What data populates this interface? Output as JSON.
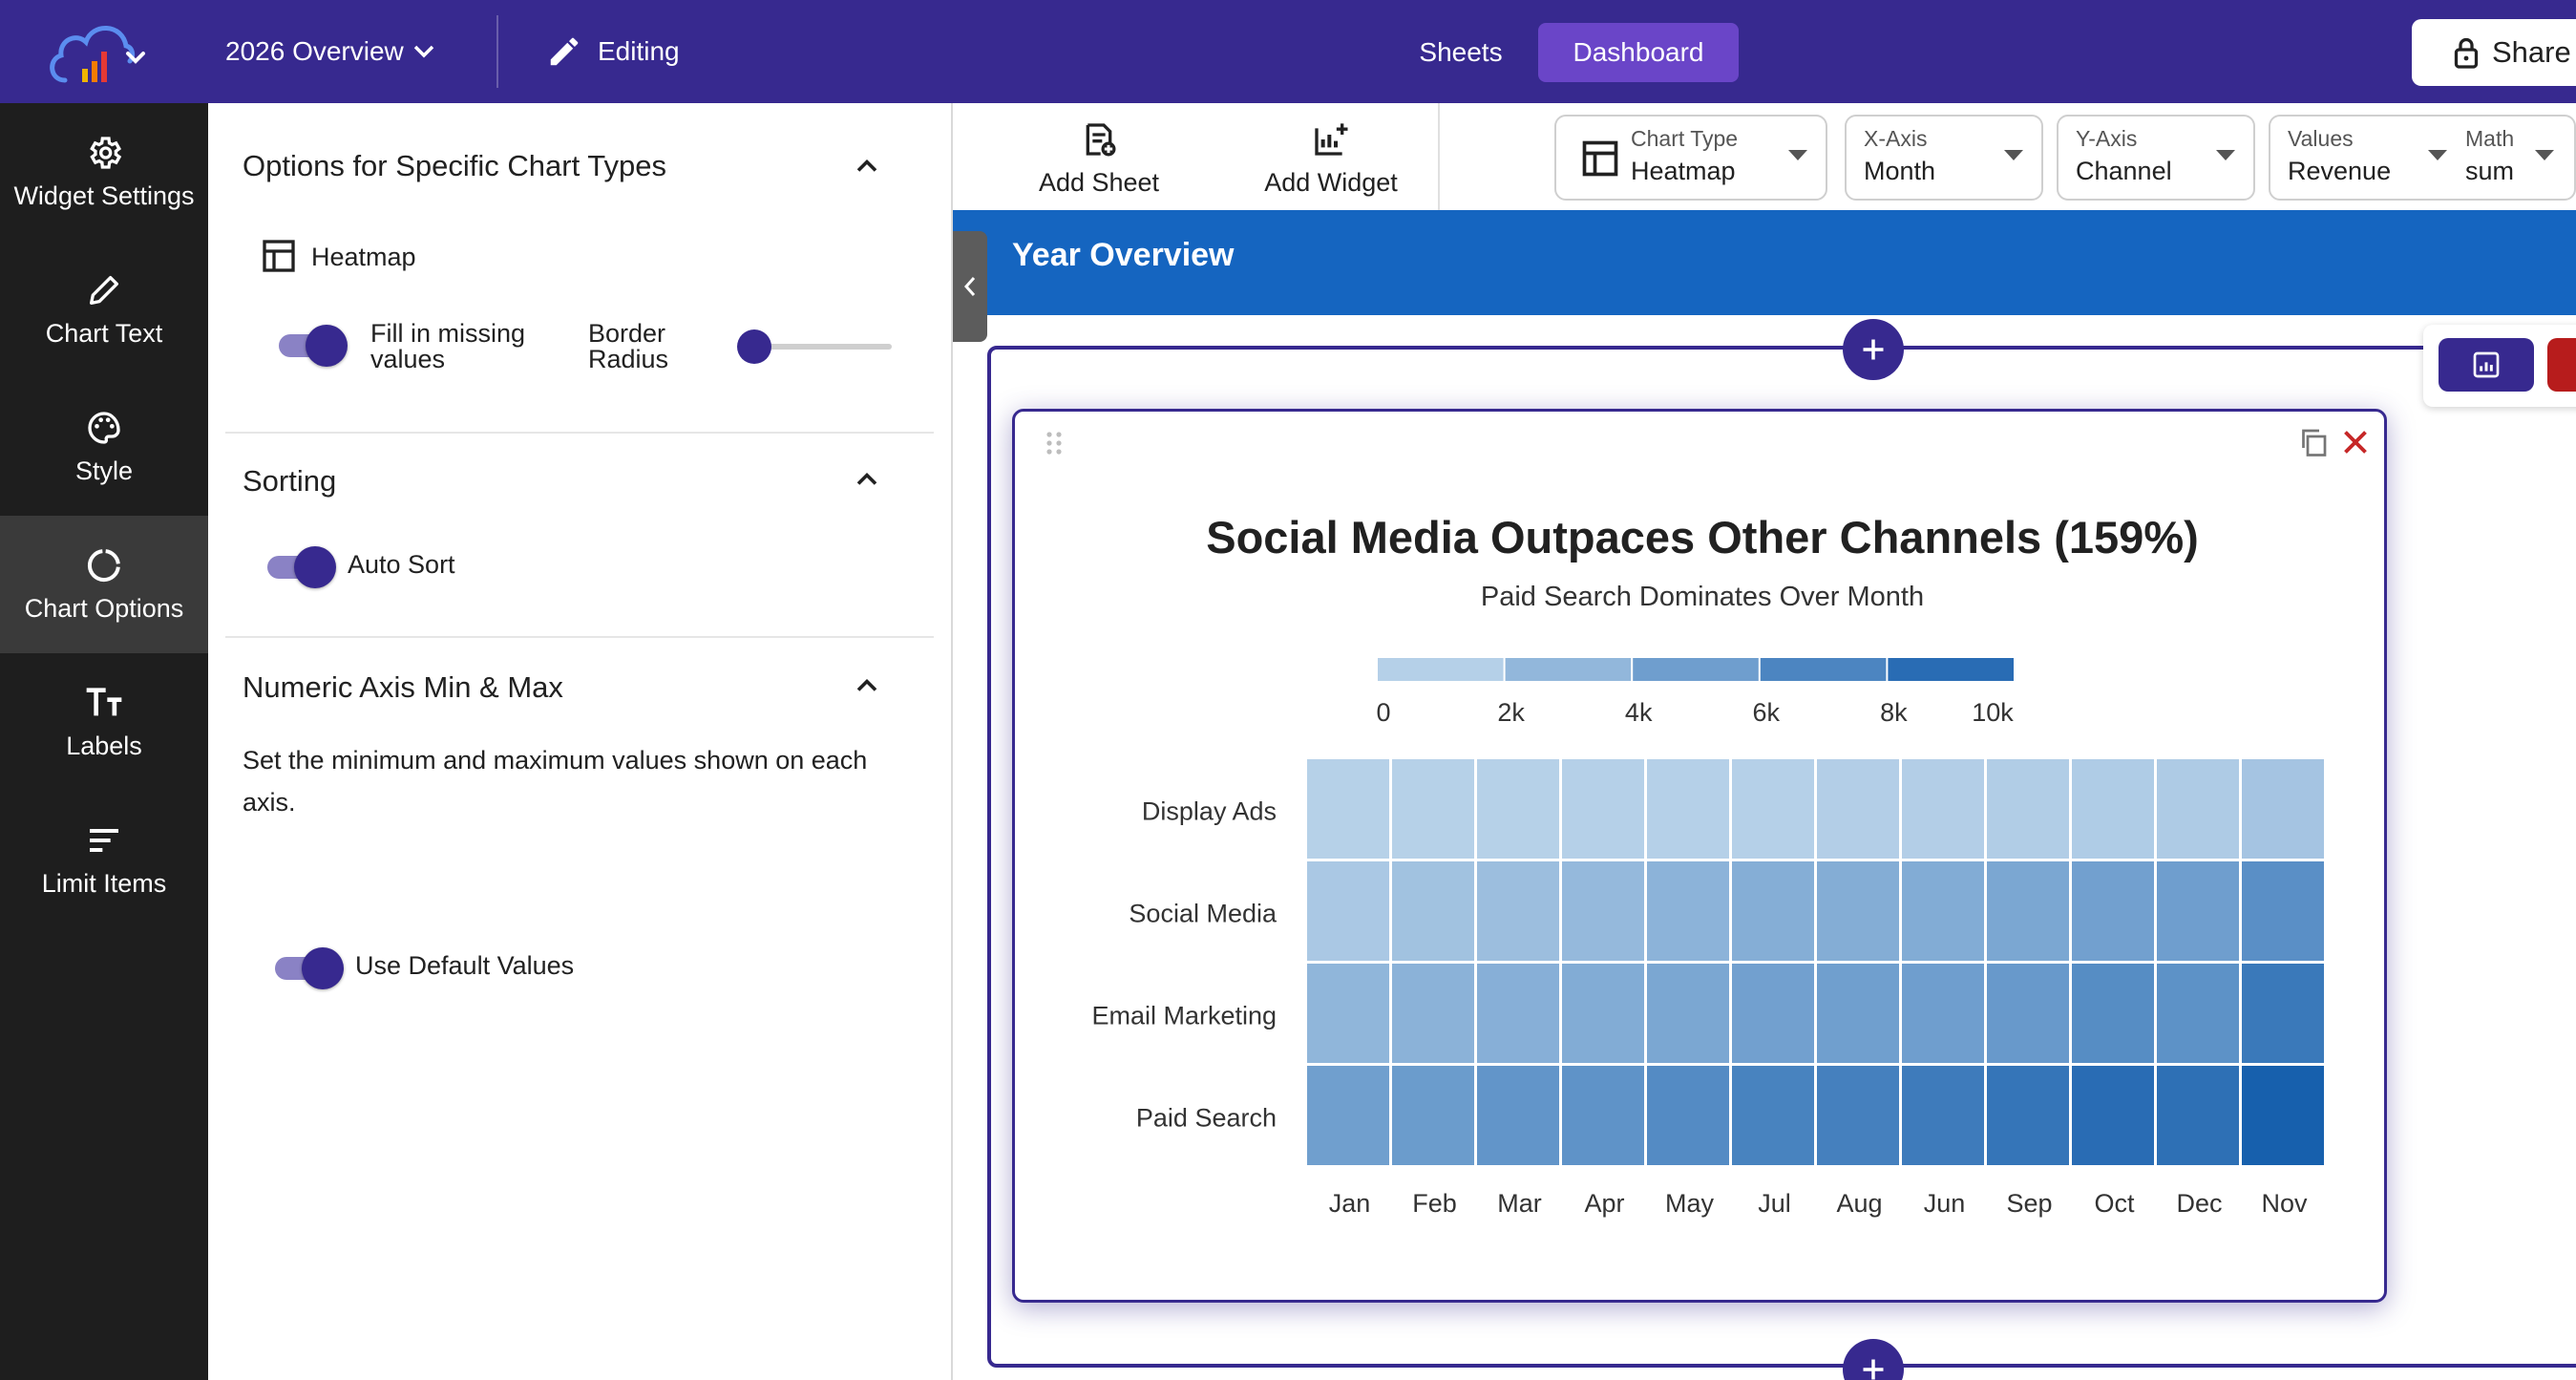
{
  "header": {
    "dashboard_title": "2026 Overview",
    "editing_label": "Editing",
    "nav": {
      "sheets": "Sheets",
      "dashboard": "Dashboard"
    },
    "share_label": "Share",
    "logo_icon": "cloud-chart-logo-icon"
  },
  "rail": {
    "items": [
      {
        "label": "Widget Settings",
        "icon": "gear-icon"
      },
      {
        "label": "Chart Text",
        "icon": "pencil-icon"
      },
      {
        "label": "Style",
        "icon": "palette-icon"
      },
      {
        "label": "Chart Options",
        "icon": "ring-icon",
        "active": true
      },
      {
        "label": "Labels",
        "icon": "text-size-icon"
      },
      {
        "label": "Limit Items",
        "icon": "filter-lines-icon"
      }
    ]
  },
  "panel": {
    "specific": {
      "title": "Options for Specific Chart Types",
      "chart_type": "Heatmap",
      "fill_missing_label": "Fill in missing values",
      "fill_missing_on": true,
      "border_radius_label": "Border Radius",
      "border_radius_value": 0
    },
    "sorting": {
      "title": "Sorting",
      "auto_sort_label": "Auto Sort",
      "auto_sort_on": true
    },
    "numeric_axis": {
      "title": "Numeric Axis Min & Max",
      "description": "Set the minimum and maximum values shown on each axis.",
      "default_label": "Use Default Values",
      "default_on": true
    }
  },
  "toolbar": {
    "add_sheet": "Add Sheet",
    "add_widget": "Add Widget",
    "selectors": [
      {
        "caption": "Chart Type",
        "value": "Heatmap"
      },
      {
        "caption": "X-Axis",
        "value": "Month"
      },
      {
        "caption": "Y-Axis",
        "value": "Channel"
      },
      {
        "caption": "Values",
        "value": "Revenue"
      },
      {
        "caption": "Math",
        "value": "sum"
      }
    ]
  },
  "section": {
    "title": "Year Overview"
  },
  "colors": {
    "accent": "#37298f",
    "banner": "#1565c0",
    "danger": "#b71c1c",
    "active_nav": "#6a45c8"
  },
  "chart_data": {
    "type": "heatmap",
    "title": "Social Media Outpaces Other Channels (159%)",
    "subtitle": "Paid Search Dominates Over Month",
    "x": [
      "Jan",
      "Feb",
      "Mar",
      "Apr",
      "May",
      "Jul",
      "Aug",
      "Jun",
      "Sep",
      "Oct",
      "Dec",
      "Nov"
    ],
    "y": [
      "Display Ads",
      "Social Media",
      "Email Marketing",
      "Paid Search"
    ],
    "values": [
      [
        900,
        900,
        900,
        1000,
        1000,
        1000,
        1100,
        1100,
        1200,
        1300,
        1400,
        1900
      ],
      [
        1600,
        2100,
        2400,
        2800,
        3300,
        3700,
        3800,
        3900,
        4300,
        4800,
        5000,
        6200
      ],
      [
        3100,
        3400,
        3600,
        3900,
        4300,
        4800,
        4900,
        5000,
        5400,
        6400,
        6000,
        8000
      ],
      [
        4900,
        5200,
        5700,
        5900,
        6500,
        7200,
        7400,
        7800,
        8300,
        9000,
        8700,
        10000
      ]
    ],
    "color_scale": {
      "min": 0,
      "max": 10000,
      "ticks": [
        "0",
        "2k",
        "4k",
        "6k",
        "8k",
        "10k"
      ],
      "low": "#c6dcee",
      "high": "#1760ad"
    },
    "legend": "top"
  }
}
